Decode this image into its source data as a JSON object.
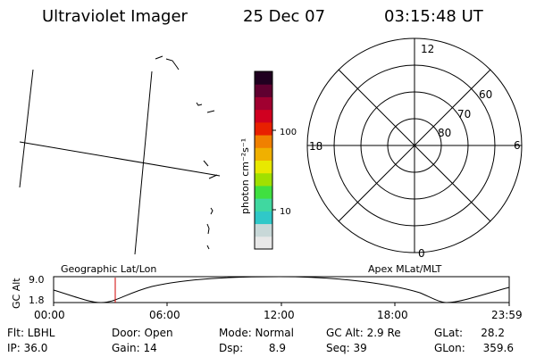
{
  "header": {
    "title": "Ultraviolet Imager",
    "date": "25 Dec 07",
    "time": "03:15:48 UT"
  },
  "colorbar": {
    "unit_label": "photon cm⁻²s⁻¹",
    "tick_labels": [
      "100",
      "10"
    ],
    "colors": [
      "#e8e8e8",
      "#c8d8d8",
      "#30c8c8",
      "#40d8a0",
      "#40e040",
      "#a0e000",
      "#e8e800",
      "#f0b000",
      "#f08000",
      "#e82000",
      "#d00020",
      "#a00030",
      "#600030",
      "#200020"
    ]
  },
  "polar_plot": {
    "mlt_labels": [
      "12",
      "6",
      "0",
      "18"
    ],
    "lat_labels": [
      "60",
      "70",
      "80"
    ]
  },
  "timeline": {
    "left_label": "Geographic Lat/Lon",
    "right_label": "Apex MLat/MLT",
    "y_axis_label": "GC Alt",
    "y_ticks": [
      "9.0",
      "1.8"
    ],
    "x_ticks": [
      "00:00",
      "06:00",
      "12:00",
      "18:00",
      "23:59"
    ],
    "current_time_marker_color": "#d00000"
  },
  "status": {
    "flt": "Flt: LBHL",
    "ip": "IP: 36.0",
    "door": "Door: Open",
    "gain": "Gain: 14",
    "mode": "Mode: Normal",
    "dsp": "Dsp:",
    "dsp_value": "8.9",
    "gc_alt": "GC Alt: 2.9 Re",
    "seq": "Seq: 39",
    "glat_label": "GLat:",
    "glat_value": "28.2",
    "glon_label": "GLon:",
    "glon_value": "359.6"
  }
}
